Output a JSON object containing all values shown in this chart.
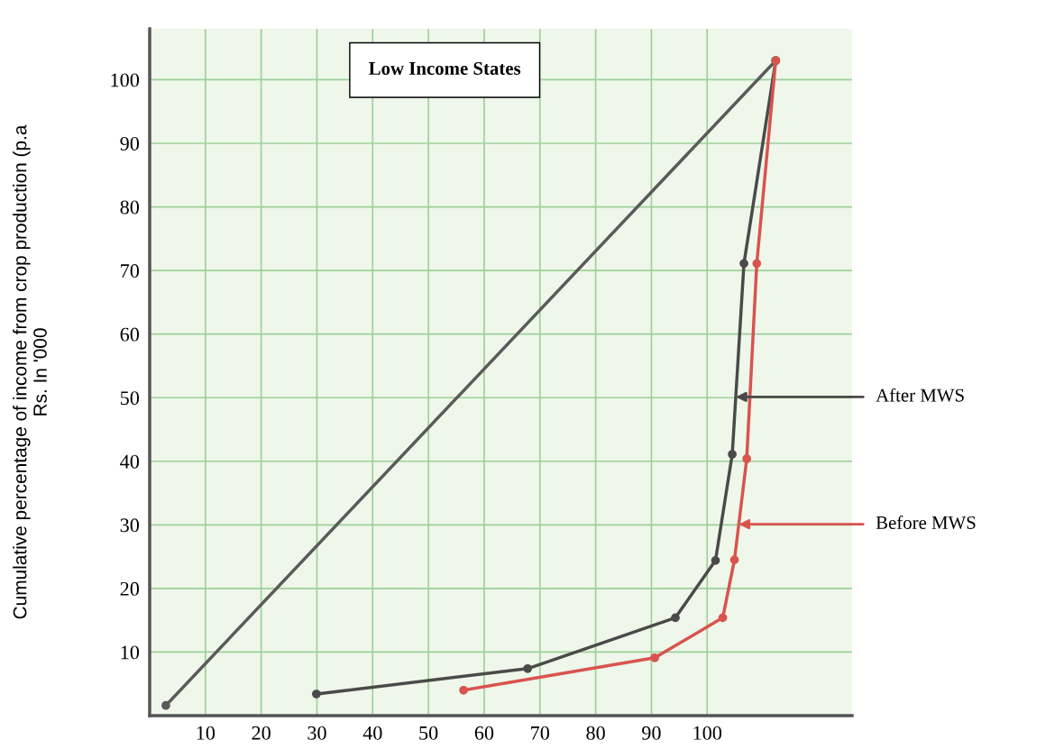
{
  "chart_data": {
    "type": "line",
    "title": "Low Income States",
    "ylabel": "Cumulative percentage of income from crop production (p.a\nRs. In '000",
    "xlim": [
      0,
      126
    ],
    "ylim": [
      0,
      108
    ],
    "xticks": [
      10,
      20,
      30,
      40,
      50,
      60,
      70,
      80,
      90,
      100
    ],
    "yticks": [
      10,
      20,
      30,
      40,
      50,
      60,
      70,
      80,
      90,
      100
    ],
    "grid": true,
    "legend": false,
    "tick_labels": true,
    "marker": "circle",
    "line_style": "solid",
    "series": [
      {
        "color": "#5a5a5a",
        "marker": "circle",
        "x": [
          2.9,
          112.3
        ],
        "values": [
          1.6,
          103
        ]
      },
      {
        "name": "After MWS",
        "color": "#4a4a4a",
        "x": [
          29.9,
          67.8,
          94.3,
          101.5,
          104.5,
          106.6,
          112.3
        ],
        "values": [
          3.4,
          7.4,
          15.4,
          24.4,
          41.1,
          71.1,
          103
        ]
      },
      {
        "name": "Before MWS",
        "color": "#d9534f",
        "x": [
          56.3,
          90.6,
          102.8,
          104.9,
          107.1,
          108.9,
          112.3
        ],
        "values": [
          4.0,
          9.1,
          15.4,
          24.5,
          40.4,
          71.1,
          103
        ]
      }
    ]
  }
}
